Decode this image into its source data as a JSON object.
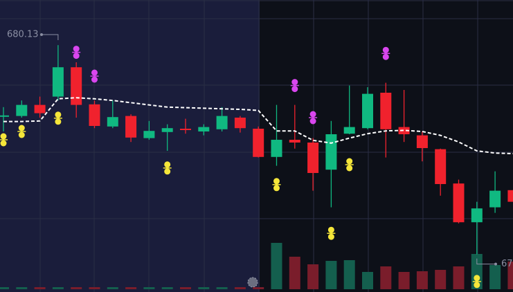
{
  "chart_data": {
    "type": "candlestick",
    "open": [
      678.67,
      678.66,
      678.86,
      679.01,
      679.54,
      678.87,
      678.47,
      678.66,
      678.26,
      678.37,
      678.43,
      678.38,
      678.42,
      678.63,
      678.43,
      677.92,
      678.23,
      678.18,
      677.69,
      678.34,
      678.44,
      679.08,
      678.46,
      678.31,
      678.06,
      677.44,
      676.74,
      677.01,
      677.32
    ],
    "high": [
      678.82,
      678.94,
      679.01,
      679.94,
      679.63,
      678.94,
      678.94,
      678.69,
      678.57,
      678.51,
      678.61,
      678.51,
      678.82,
      678.66,
      678.47,
      678.86,
      678.86,
      678.26,
      678.57,
      679.21,
      679.18,
      679.26,
      679.13,
      678.38,
      678.07,
      677.51,
      677.11,
      677.66,
      677.32
    ],
    "low": [
      678.38,
      678.63,
      678.63,
      678.94,
      678.63,
      678.44,
      678.44,
      678.19,
      678.23,
      678.03,
      678.34,
      678.31,
      678.38,
      678.36,
      677.91,
      677.76,
      678.07,
      677.31,
      677.01,
      678.33,
      678.42,
      677.91,
      678.19,
      677.84,
      677.22,
      676.72,
      676.16,
      676.91,
      677.11
    ],
    "close": [
      678.67,
      678.86,
      678.71,
      679.54,
      678.86,
      678.48,
      678.64,
      678.27,
      678.39,
      678.44,
      678.41,
      678.46,
      678.66,
      678.44,
      677.92,
      678.23,
      678.18,
      677.63,
      678.33,
      678.46,
      679.06,
      678.42,
      678.33,
      678.08,
      677.43,
      676.74,
      676.99,
      677.31,
      677.11
    ],
    "moving_average": [
      678.56,
      678.56,
      678.57,
      678.97,
      678.99,
      678.97,
      678.94,
      678.9,
      678.86,
      678.82,
      678.81,
      678.8,
      678.79,
      678.78,
      678.76,
      678.39,
      678.39,
      678.22,
      678.17,
      678.26,
      678.34,
      678.39,
      678.4,
      678.38,
      678.31,
      678.19,
      678.03,
      677.99,
      677.98
    ],
    "signals_below": [
      678.23,
      678.38,
      null,
      678.62,
      null,
      null,
      null,
      null,
      null,
      677.72,
      null,
      null,
      null,
      null,
      null,
      677.42,
      null,
      null,
      676.54,
      677.78,
      null,
      null,
      null,
      null,
      null,
      null,
      675.67,
      null,
      null
    ],
    "signals_above": [
      null,
      null,
      null,
      null,
      679.81,
      679.38,
      null,
      null,
      null,
      null,
      null,
      null,
      null,
      null,
      null,
      null,
      679.21,
      678.63,
      null,
      null,
      null,
      679.79,
      null,
      null,
      null,
      null,
      null,
      null,
      null
    ],
    "volume": [
      3,
      3,
      3,
      3,
      3,
      3,
      3,
      3,
      3,
      3,
      3,
      3,
      3,
      3,
      3,
      67,
      47,
      36,
      41,
      42,
      25,
      33,
      25,
      26,
      28,
      33,
      51,
      35,
      40
    ],
    "vlim": [
      0,
      100
    ],
    "ylim": [
      675.48,
      680.755
    ],
    "high_label": 680.13,
    "low_label": "67",
    "up_color": "#10b981",
    "down_color": "#f0222d",
    "up_volume_color": "#145f4e",
    "down_volume_color": "#7a1d2b",
    "signal_below_color": "#f5e63a",
    "signal_above_color": "#d946ef",
    "moving_average_color": "#ffffff"
  }
}
